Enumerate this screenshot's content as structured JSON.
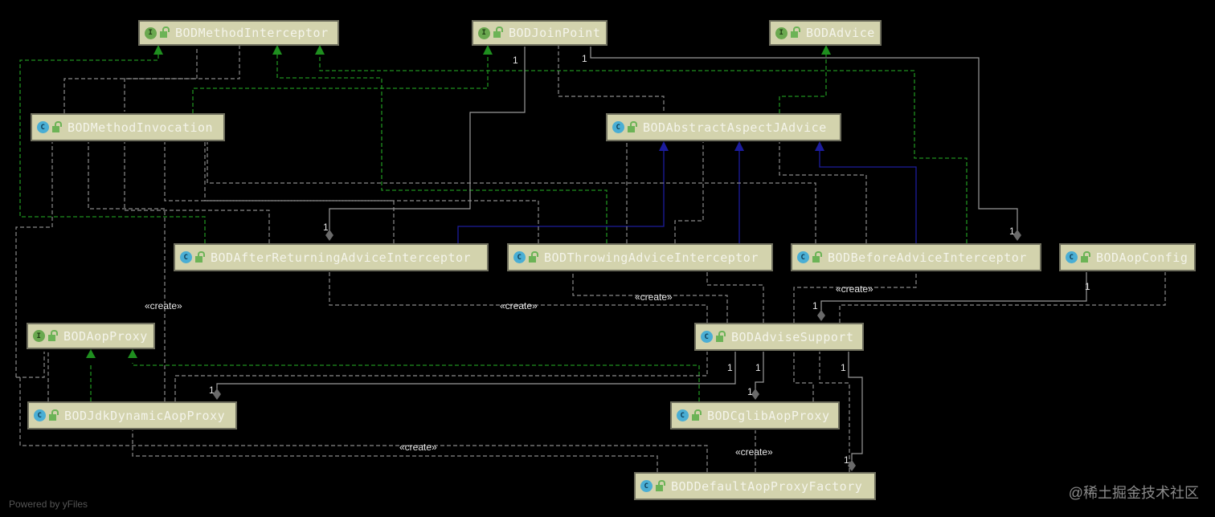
{
  "colors": {
    "node_fill": "#d3d3ad",
    "implements": "#1f8f1f",
    "extends": "#1c1c9c",
    "dependency": "#8a8a8a",
    "association": "#9a9a9a"
  },
  "nodes": [
    {
      "id": "mi",
      "name": "BODMethodInterceptor",
      "kind": "interface"
    },
    {
      "id": "jp",
      "name": "BODJoinPoint",
      "kind": "interface"
    },
    {
      "id": "adv",
      "name": "BODAdvice",
      "kind": "interface"
    },
    {
      "id": "minv",
      "name": "BODMethodInvocation",
      "kind": "class"
    },
    {
      "id": "aaj",
      "name": "BODAbstractAspectJAdvice",
      "kind": "class"
    },
    {
      "id": "ara",
      "name": "BODAfterReturningAdviceInterceptor",
      "kind": "class"
    },
    {
      "id": "tai",
      "name": "BODThrowingAdviceInterceptor",
      "kind": "class"
    },
    {
      "id": "bai",
      "name": "BODBeforeAdviceInterceptor",
      "kind": "class"
    },
    {
      "id": "cfg",
      "name": "BODAopConfig",
      "kind": "class"
    },
    {
      "id": "ap",
      "name": "BODAopProxy",
      "kind": "interface"
    },
    {
      "id": "as",
      "name": "BODAdviseSupport",
      "kind": "class"
    },
    {
      "id": "jdk",
      "name": "BODJdkDynamicAopProxy",
      "kind": "class"
    },
    {
      "id": "cg",
      "name": "BODCglibAopProxy",
      "kind": "class"
    },
    {
      "id": "dpf",
      "name": "BODDefaultAopProxyFactory",
      "kind": "class"
    }
  ],
  "labels": {
    "create": "«create»",
    "one": "1"
  },
  "footer": "Powered by yFiles",
  "watermark": "@稀土掘金技术社区"
}
